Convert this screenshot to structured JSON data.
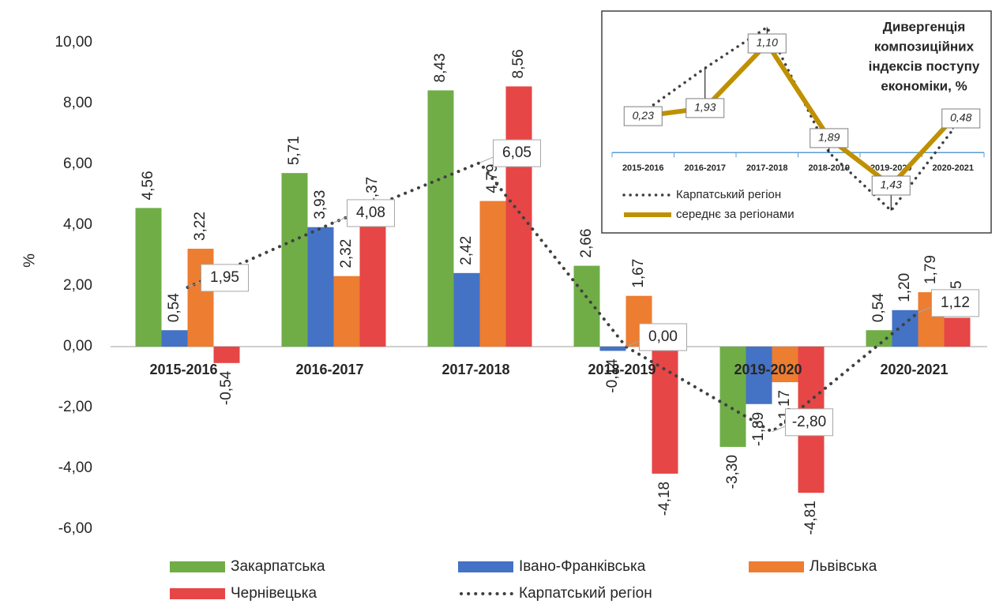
{
  "chart_data": [
    {
      "type": "bar",
      "ylabel": "%",
      "categories": [
        "2015-2016",
        "2016-2017",
        "2017-2018",
        "2018-2019",
        "2019-2020",
        "2020-2021"
      ],
      "ylim": [
        -6,
        10
      ],
      "yticks": [
        {
          "value": -6,
          "label": "-6,00"
        },
        {
          "value": -4,
          "label": "-4,00"
        },
        {
          "value": -2,
          "label": "-2,00"
        },
        {
          "value": 0,
          "label": "0,00"
        },
        {
          "value": 2,
          "label": "2,00"
        },
        {
          "value": 4,
          "label": "4,00"
        },
        {
          "value": 6,
          "label": "6,00"
        },
        {
          "value": 8,
          "label": "8,00"
        },
        {
          "value": 10,
          "label": "10,00"
        }
      ],
      "grid": false,
      "legend": "bottom",
      "series": [
        {
          "name": "Закарпатська",
          "type": "bar",
          "color": "#70ad47",
          "label_color": "#548235",
          "values": [
            4.56,
            5.71,
            8.43,
            2.66,
            -3.3,
            0.54
          ],
          "value_labels": [
            "4,56",
            "5,71",
            "8,43",
            "2,66",
            "-3,30",
            "0,54"
          ]
        },
        {
          "name": "Івано-Франківська",
          "type": "bar",
          "color": "#4472c4",
          "label_color": "#2f5597",
          "values": [
            0.54,
            3.93,
            2.42,
            -0.14,
            -1.89,
            1.2
          ],
          "value_labels": [
            "0,54",
            "3,93",
            "2,42",
            "-0,14",
            "-1,89",
            "1,20"
          ]
        },
        {
          "name": "Львівська",
          "type": "bar",
          "color": "#ed7d31",
          "label_color": "#c55a11",
          "values": [
            3.22,
            2.32,
            4.79,
            1.67,
            -1.17,
            1.79
          ],
          "value_labels": [
            "3,22",
            "2,32",
            "4,79",
            "1,67",
            "-1,17",
            "1,79"
          ]
        },
        {
          "name": "Чернівецька",
          "type": "bar",
          "color": "#e64646",
          "label_color": "#c00000",
          "values": [
            -0.54,
            4.37,
            8.56,
            -4.18,
            -4.81,
            0.95
          ],
          "value_labels": [
            "-0,54",
            "4,37",
            "8,56",
            "-4,18",
            "-4,81",
            "0,95"
          ]
        },
        {
          "name": "Карпатський регіон",
          "type": "line",
          "color": "#404040",
          "values": [
            1.95,
            4.08,
            6.05,
            0.0,
            -2.8,
            1.12
          ],
          "value_labels": [
            "1,95",
            "4,08",
            "6,05",
            "0,00",
            "-2,80",
            "1,12"
          ]
        }
      ]
    },
    {
      "type": "line",
      "title": [
        "Дивергенція",
        "композиційних",
        "індексів поступу",
        "економіки, %"
      ],
      "categories": [
        "2015-2016",
        "2016-2017",
        "2017-2018",
        "2018-2019",
        "2019-2020",
        "2020-2021"
      ],
      "ylim": [
        -3,
        6.3
      ],
      "divergence_labels": [
        "0,23",
        "1,93",
        "1,10",
        "1,89",
        "1,43",
        "0,48"
      ],
      "series": [
        {
          "name": "Карпатський регіон",
          "style": "dotted",
          "color": "#404040",
          "values": [
            1.95,
            4.08,
            6.05,
            0.0,
            -2.8,
            1.12
          ]
        },
        {
          "name": "середнє за регіонами",
          "style": "solid",
          "color": "#bf9000",
          "values": [
            1.76,
            2.15,
            5.27,
            0.7,
            -1.59,
            1.65
          ]
        }
      ]
    }
  ]
}
